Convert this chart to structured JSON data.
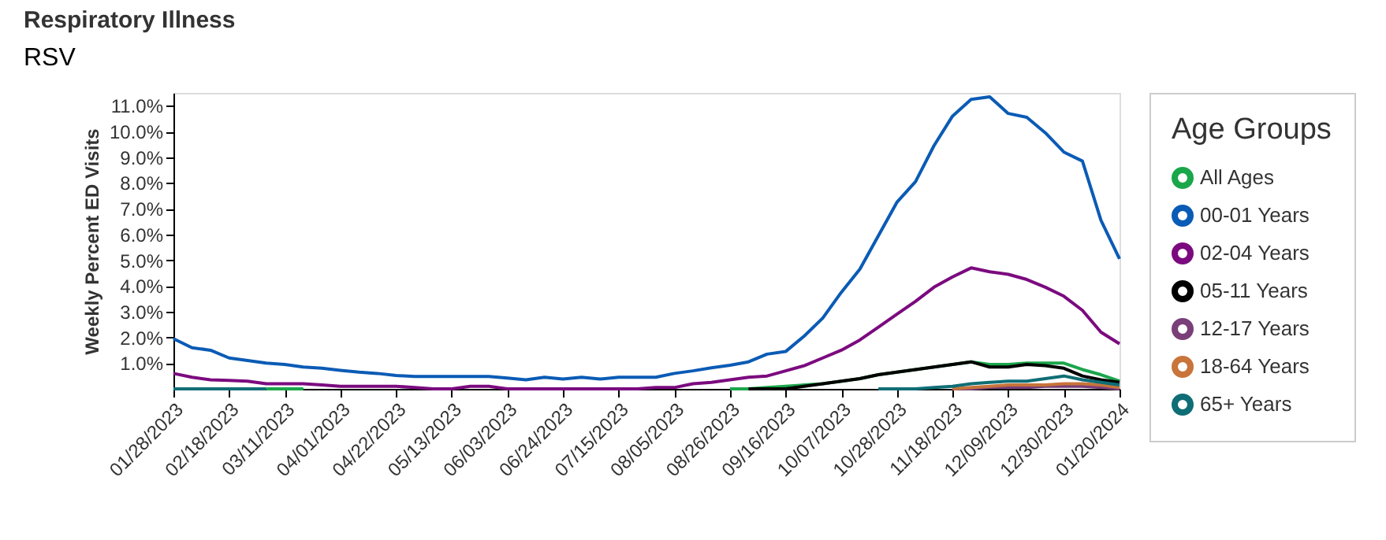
{
  "chart_data": {
    "type": "line",
    "title": "Respiratory Illness",
    "subtitle": "RSV",
    "ylabel": "Weekly Percent ED Visits",
    "legend_title": "Age Groups",
    "legend": "right",
    "grid": false,
    "marker": "none",
    "line_style": "solid",
    "x": [
      "2023-01-28",
      "2023-02-04",
      "2023-02-11",
      "2023-02-18",
      "2023-02-25",
      "2023-03-04",
      "2023-03-11",
      "2023-03-18",
      "2023-03-25",
      "2023-04-01",
      "2023-04-08",
      "2023-04-15",
      "2023-04-22",
      "2023-04-29",
      "2023-05-06",
      "2023-05-13",
      "2023-05-20",
      "2023-05-27",
      "2023-06-03",
      "2023-06-10",
      "2023-06-17",
      "2023-06-24",
      "2023-07-01",
      "2023-07-08",
      "2023-07-15",
      "2023-07-22",
      "2023-07-29",
      "2023-08-05",
      "2023-08-12",
      "2023-08-19",
      "2023-08-26",
      "2023-09-02",
      "2023-09-09",
      "2023-09-16",
      "2023-09-23",
      "2023-09-30",
      "2023-10-07",
      "2023-10-14",
      "2023-10-21",
      "2023-10-28",
      "2023-11-04",
      "2023-11-11",
      "2023-11-18",
      "2023-11-25",
      "2023-12-02",
      "2023-12-09",
      "2023-12-16",
      "2023-12-23",
      "2023-12-30",
      "2024-01-06",
      "2024-01-13",
      "2024-01-20"
    ],
    "xlim": [
      "2023-01-28",
      "2024-01-20"
    ],
    "xticks": [
      {
        "value": "2023-01-28",
        "label": "01/28/2023"
      },
      {
        "value": "2023-02-18",
        "label": "02/18/2023"
      },
      {
        "value": "2023-03-11",
        "label": "03/11/2023"
      },
      {
        "value": "2023-04-01",
        "label": "04/01/2023"
      },
      {
        "value": "2023-04-22",
        "label": "04/22/2023"
      },
      {
        "value": "2023-05-13",
        "label": "05/13/2023"
      },
      {
        "value": "2023-06-03",
        "label": "06/03/2023"
      },
      {
        "value": "2023-06-24",
        "label": "06/24/2023"
      },
      {
        "value": "2023-07-15",
        "label": "07/15/2023"
      },
      {
        "value": "2023-08-05",
        "label": "08/05/2023"
      },
      {
        "value": "2023-08-26",
        "label": "08/26/2023"
      },
      {
        "value": "2023-09-16",
        "label": "09/16/2023"
      },
      {
        "value": "2023-10-07",
        "label": "10/07/2023"
      },
      {
        "value": "2023-10-28",
        "label": "10/28/2023"
      },
      {
        "value": "2023-11-18",
        "label": "11/18/2023"
      },
      {
        "value": "2023-12-09",
        "label": "12/09/2023"
      },
      {
        "value": "2023-12-30",
        "label": "12/30/2023"
      },
      {
        "value": "2024-01-20",
        "label": "01/20/2024"
      }
    ],
    "ylim": [
      0,
      11.5
    ],
    "yticks": [
      {
        "value": 1,
        "label": "1.0%"
      },
      {
        "value": 2,
        "label": "2.0%"
      },
      {
        "value": 3,
        "label": "3.0%"
      },
      {
        "value": 4,
        "label": "4.0%"
      },
      {
        "value": 5,
        "label": "5.0%"
      },
      {
        "value": 6,
        "label": "6.0%"
      },
      {
        "value": 7,
        "label": "7.0%"
      },
      {
        "value": 8,
        "label": "8.0%"
      },
      {
        "value": 9,
        "label": "9.0%"
      },
      {
        "value": 10,
        "label": "10.0%"
      },
      {
        "value": 11,
        "label": "11.0%"
      }
    ],
    "series": [
      {
        "name": "All Ages",
        "color": "#1aa64b",
        "values": [
          null,
          null,
          null,
          null,
          null,
          0,
          0,
          0,
          null,
          null,
          null,
          null,
          null,
          null,
          null,
          null,
          null,
          null,
          null,
          null,
          null,
          null,
          null,
          null,
          null,
          null,
          null,
          null,
          null,
          null,
          0,
          0,
          0.05,
          0.1,
          0.15,
          0.2,
          0.3,
          0.4,
          0.55,
          0.65,
          0.75,
          0.85,
          0.95,
          1.05,
          0.95,
          0.95,
          1.0,
          1.0,
          1.0,
          0.75,
          0.55,
          0.3
        ]
      },
      {
        "name": "00-01 Years",
        "color": "#0a5bb5",
        "values": [
          1.95,
          1.6,
          1.5,
          1.2,
          1.1,
          1.0,
          0.95,
          0.85,
          0.8,
          0.72,
          0.65,
          0.6,
          0.52,
          0.48,
          0.48,
          0.48,
          0.48,
          0.48,
          0.42,
          0.35,
          0.45,
          0.38,
          0.45,
          0.38,
          0.45,
          0.45,
          0.45,
          0.6,
          0.7,
          0.82,
          0.92,
          1.05,
          1.35,
          1.45,
          2.05,
          2.75,
          3.75,
          4.65,
          5.95,
          7.25,
          8.05,
          9.45,
          10.6,
          11.25,
          11.35,
          10.7,
          10.55,
          9.95,
          9.2,
          8.85,
          6.55,
          5.05
        ]
      },
      {
        "name": "02-04 Years",
        "color": "#7b0a7f",
        "values": [
          0.6,
          0.45,
          0.35,
          0.33,
          0.3,
          0.2,
          0.2,
          0.2,
          0.15,
          0.1,
          0.1,
          0.1,
          0.1,
          0.05,
          0.0,
          0.0,
          0.1,
          0.1,
          0.0,
          0.0,
          0.0,
          0.0,
          0.0,
          0.0,
          0.0,
          0.0,
          0.05,
          0.05,
          0.2,
          0.25,
          0.35,
          0.45,
          0.5,
          0.7,
          0.9,
          1.2,
          1.5,
          1.9,
          2.4,
          2.9,
          3.4,
          3.95,
          4.35,
          4.7,
          4.55,
          4.45,
          4.25,
          3.95,
          3.6,
          3.05,
          2.2,
          1.75
        ]
      },
      {
        "name": "05-11 Years",
        "color": "#000000",
        "values": [
          null,
          null,
          null,
          null,
          null,
          null,
          null,
          null,
          null,
          null,
          null,
          null,
          null,
          null,
          null,
          null,
          null,
          null,
          null,
          null,
          null,
          null,
          null,
          null,
          null,
          null,
          null,
          null,
          null,
          null,
          null,
          0,
          0,
          0,
          0.1,
          0.2,
          0.3,
          0.4,
          0.55,
          0.65,
          0.75,
          0.85,
          0.95,
          1.05,
          0.85,
          0.85,
          0.95,
          0.9,
          0.8,
          0.5,
          0.35,
          0.25
        ]
      },
      {
        "name": "12-17 Years",
        "color": "#7a3f78",
        "values": [
          null,
          null,
          null,
          null,
          null,
          null,
          null,
          null,
          null,
          null,
          null,
          null,
          null,
          null,
          null,
          null,
          null,
          null,
          null,
          null,
          null,
          null,
          null,
          null,
          null,
          null,
          null,
          null,
          null,
          null,
          null,
          null,
          null,
          null,
          null,
          null,
          null,
          null,
          null,
          null,
          null,
          null,
          0,
          0,
          0.05,
          0.05,
          0.05,
          0.1,
          0.1,
          0.1,
          0.05,
          0
        ]
      },
      {
        "name": "18-64 Years",
        "color": "#c8743a",
        "values": [
          null,
          null,
          null,
          null,
          null,
          null,
          null,
          null,
          null,
          null,
          null,
          null,
          null,
          null,
          null,
          null,
          null,
          null,
          null,
          null,
          null,
          null,
          null,
          null,
          null,
          null,
          null,
          null,
          null,
          null,
          null,
          null,
          null,
          null,
          null,
          null,
          null,
          null,
          null,
          null,
          null,
          null,
          0,
          0.05,
          0.1,
          0.15,
          0.15,
          0.15,
          0.2,
          0.2,
          0.15,
          0.05
        ]
      },
      {
        "name": "65+ Years",
        "color": "#0f6d75",
        "values": [
          0,
          0,
          0,
          0,
          0,
          0,
          null,
          null,
          null,
          null,
          null,
          null,
          null,
          null,
          null,
          null,
          null,
          null,
          null,
          null,
          null,
          null,
          null,
          null,
          null,
          null,
          null,
          null,
          null,
          null,
          null,
          null,
          null,
          null,
          null,
          null,
          null,
          null,
          0,
          0,
          0,
          0.05,
          0.1,
          0.2,
          0.25,
          0.3,
          0.3,
          0.4,
          0.5,
          0.35,
          0.25,
          0.15
        ]
      }
    ]
  }
}
